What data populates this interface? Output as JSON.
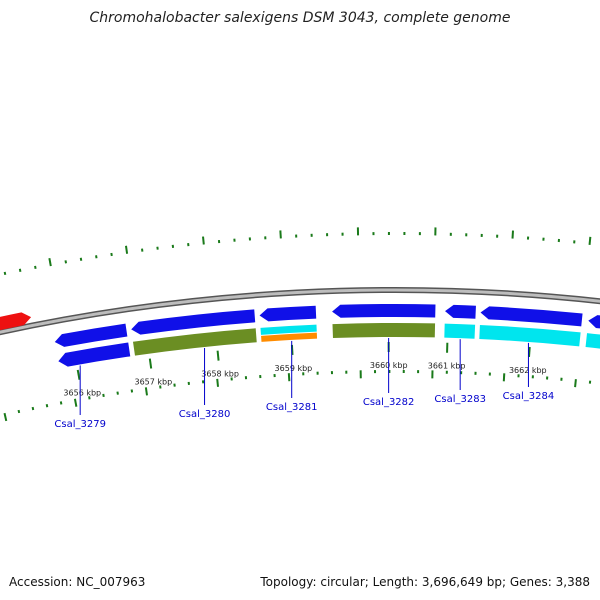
{
  "title": "Chromohalobacter salexigens DSM 3043, complete genome",
  "footer": {
    "accession": "Accession: NC_007963",
    "summary": "Topology: circular; Length: 3,696,649 bp; Genes: 3,388"
  },
  "colors": {
    "backbone": "#8a8a8a",
    "blue": "#1010e8",
    "olive": "#6b8e23",
    "cyan": "#00e5ee",
    "orange": "#ff8c00",
    "red": "#ee1111",
    "tick": "#1a7a1a",
    "label": "#0000cc"
  },
  "scale": {
    "ticks": [
      {
        "label": "3656 kbp"
      },
      {
        "label": "3657 kbp"
      },
      {
        "label": "3658 kbp"
      },
      {
        "label": "3659 kbp"
      },
      {
        "label": "3660 kbp"
      },
      {
        "label": "3661 kbp"
      },
      {
        "label": "3662 kbp"
      }
    ]
  },
  "genes": [
    {
      "label": "Csal_3279"
    },
    {
      "label": "Csal_3280"
    },
    {
      "label": "Csal_3281"
    },
    {
      "label": "Csal_3282"
    },
    {
      "label": "Csal_3283"
    },
    {
      "label": "Csal_3284"
    }
  ]
}
